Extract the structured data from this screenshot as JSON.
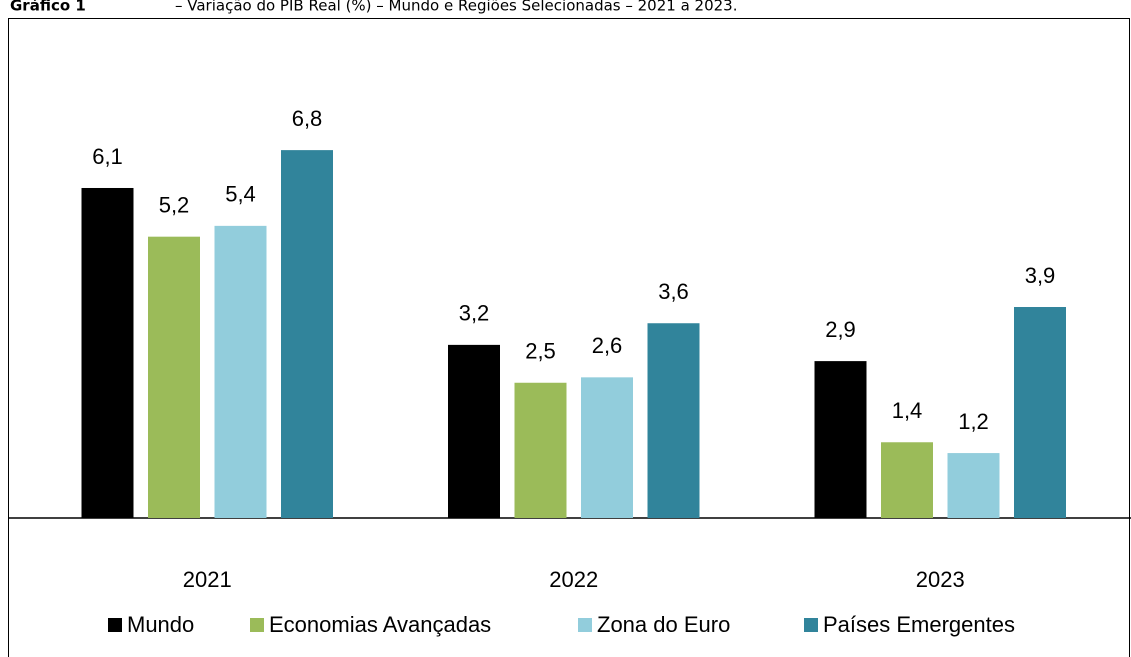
{
  "chart_data": {
    "type": "bar",
    "title": "Gráfico 1",
    "subtitle": "– Variação do PIB Real (%) – Mundo e Regiões Selecionadas – 2021 a 2023.",
    "categories": [
      "2021",
      "2022",
      "2023"
    ],
    "series": [
      {
        "name": "Mundo",
        "color": "#000000",
        "values": [
          6.1,
          3.2,
          2.9
        ],
        "value_labels": [
          "6,1",
          "3,2",
          "2,9"
        ]
      },
      {
        "name": "Economias Avançadas",
        "color": "#9bbb59",
        "values": [
          5.2,
          2.5,
          1.4
        ],
        "value_labels": [
          "5,2",
          "2,5",
          "1,4"
        ]
      },
      {
        "name": "Zona do Euro",
        "color": "#92cddc",
        "values": [
          5.4,
          2.6,
          1.2
        ],
        "value_labels": [
          "5,4",
          "2,6",
          "1,2"
        ]
      },
      {
        "name": "Países Emergentes",
        "color": "#31849b",
        "values": [
          6.8,
          3.6,
          3.9
        ],
        "value_labels": [
          "6,8",
          "3,6",
          "3,9"
        ]
      }
    ],
    "legend": "bottom"
  }
}
